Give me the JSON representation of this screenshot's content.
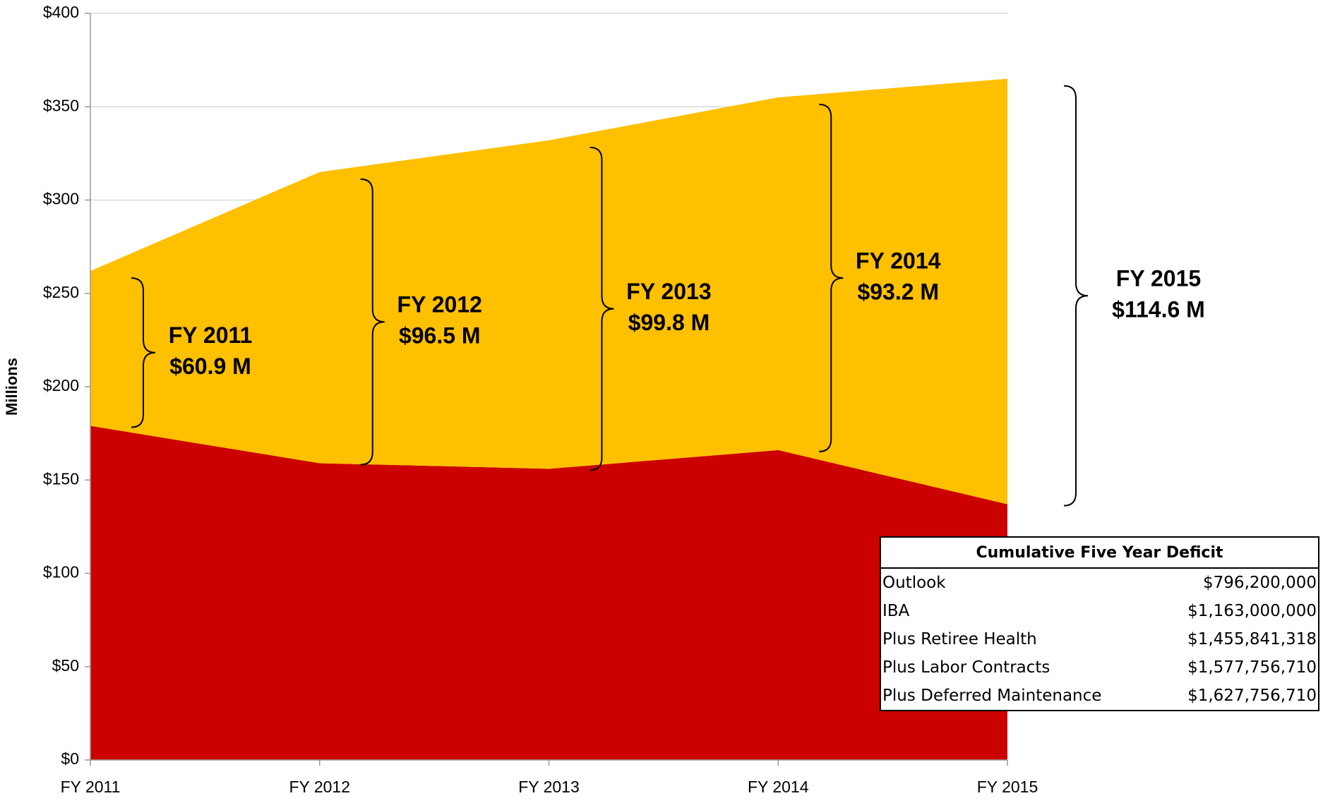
{
  "chart_data": {
    "type": "stacked-area",
    "y_label": "Millions",
    "categories": [
      "FY 2011",
      "FY 2012",
      "FY 2013",
      "FY 2014",
      "FY 2015"
    ],
    "series": [
      {
        "color": "#cc0000",
        "values": [
          179,
          159,
          156,
          166,
          137
        ]
      },
      {
        "color": "#ffc000",
        "values": [
          83,
          156,
          176,
          189,
          228
        ]
      }
    ],
    "ylim": [
      0,
      400
    ],
    "yticks": [
      {
        "value": 0,
        "label": "$0"
      },
      {
        "value": 50,
        "label": "$50"
      },
      {
        "value": 100,
        "label": "$100"
      },
      {
        "value": 150,
        "label": "$150"
      },
      {
        "value": 200,
        "label": "$200"
      },
      {
        "value": 250,
        "label": "$250"
      },
      {
        "value": 300,
        "label": "$300"
      },
      {
        "value": 350,
        "label": "$350"
      },
      {
        "value": 400,
        "label": "$400"
      }
    ],
    "grid": true,
    "annotations": [
      [
        "FY 2011",
        "$60.9 M"
      ],
      [
        "FY 2012",
        "$96.5 M"
      ],
      [
        "FY 2013",
        "$99.8 M"
      ],
      [
        "FY 2014",
        "$93.2 M"
      ],
      [
        "FY 2015",
        "$114.6 M"
      ]
    ]
  },
  "table": {
    "title": "Cumulative Five Year Deficit",
    "rows": [
      [
        "Outlook",
        "$796,200,000"
      ],
      [
        "IBA",
        "$1,163,000,000"
      ],
      [
        "Plus Retiree Health",
        "$1,455,841,318"
      ],
      [
        "Plus Labor Contracts",
        "$1,577,756,710"
      ],
      [
        "Plus Deferred Maintenance",
        "$1,627,756,710"
      ]
    ]
  }
}
